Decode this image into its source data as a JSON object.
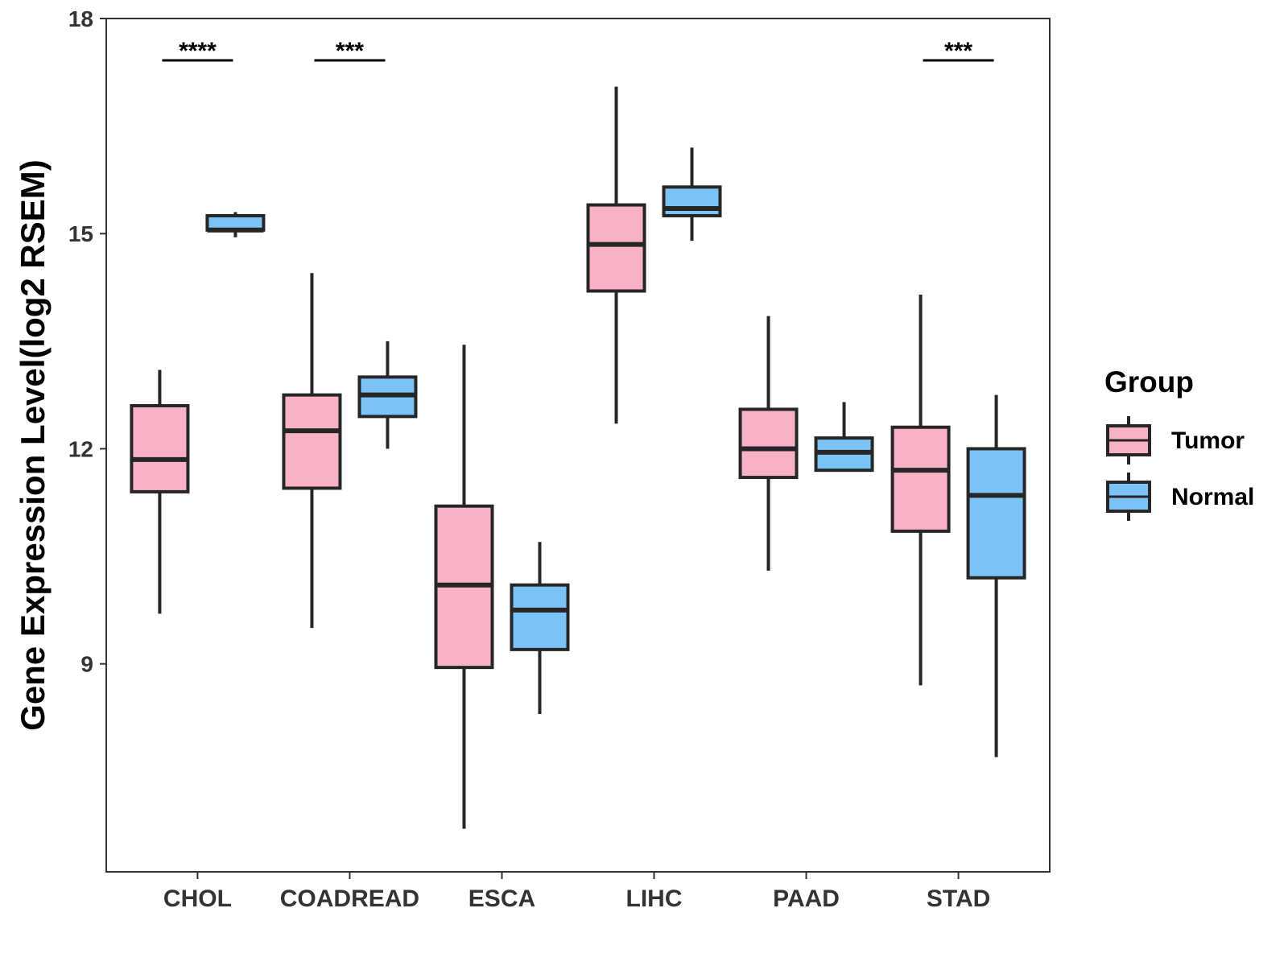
{
  "chart_data": {
    "type": "boxplot",
    "title": "",
    "xlabel": "",
    "ylabel": "Gene Expression Level(log2 RSEM)",
    "ylim": [
      6.1,
      18
    ],
    "yticks": [
      9,
      12,
      15,
      18
    ],
    "categories": [
      "CHOL",
      "COADREAD",
      "ESCA",
      "LIHC",
      "PAAD",
      "STAD"
    ],
    "legend": {
      "title": "Group",
      "position": "right",
      "entries": [
        "Tumor",
        "Normal"
      ]
    },
    "series": [
      {
        "name": "Tumor",
        "color": "#F9B2C4",
        "boxes": [
          {
            "min": 9.7,
            "q1": 11.4,
            "median": 11.85,
            "q3": 12.6,
            "max": 13.1
          },
          {
            "min": 9.5,
            "q1": 11.45,
            "median": 12.25,
            "q3": 12.75,
            "max": 14.45
          },
          {
            "min": 6.7,
            "q1": 8.95,
            "median": 10.1,
            "q3": 11.2,
            "max": 13.45
          },
          {
            "min": 12.35,
            "q1": 14.2,
            "median": 14.85,
            "q3": 15.4,
            "max": 17.05
          },
          {
            "min": 10.3,
            "q1": 11.6,
            "median": 12.0,
            "q3": 12.55,
            "max": 13.85
          },
          {
            "min": 8.7,
            "q1": 10.85,
            "median": 11.7,
            "q3": 12.3,
            "max": 14.15
          }
        ]
      },
      {
        "name": "Normal",
        "color": "#7BC3F7",
        "boxes": [
          {
            "min": 14.95,
            "q1": 15.05,
            "median": 15.05,
            "q3": 15.25,
            "max": 15.3
          },
          {
            "min": 12.0,
            "q1": 12.45,
            "median": 12.75,
            "q3": 13.0,
            "max": 13.5
          },
          {
            "min": 8.3,
            "q1": 9.2,
            "median": 9.75,
            "q3": 10.1,
            "max": 10.7
          },
          {
            "min": 14.9,
            "q1": 15.25,
            "median": 15.35,
            "q3": 15.65,
            "max": 16.2
          },
          {
            "min": 11.7,
            "q1": 11.7,
            "median": 11.95,
            "q3": 12.15,
            "max": 12.65
          },
          {
            "min": 7.7,
            "q1": 10.2,
            "median": 11.35,
            "q3": 12.0,
            "max": 12.75
          }
        ]
      }
    ],
    "annotations": [
      {
        "category": "CHOL",
        "label": "****"
      },
      {
        "category": "COADREAD",
        "label": "***"
      },
      {
        "category": "STAD",
        "label": "***"
      }
    ]
  }
}
